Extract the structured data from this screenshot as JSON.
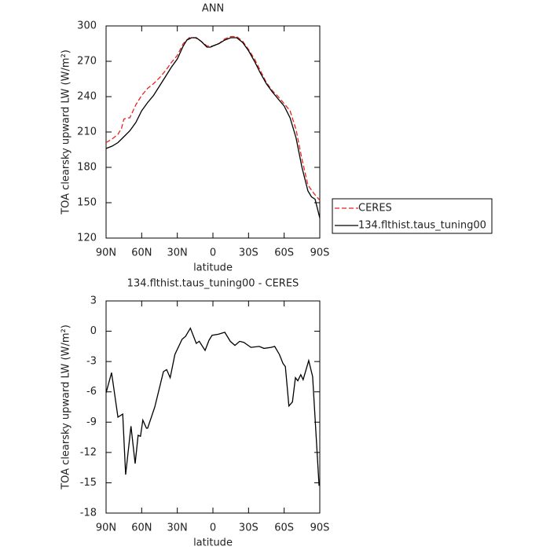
{
  "chart_data": [
    {
      "type": "line",
      "title": "ANN",
      "xlabel": "latitude",
      "ylabel": "TOA clearsky upward LW (W/m²)",
      "xlim": [
        90,
        -90
      ],
      "xticks": [
        {
          "value": 90,
          "label": "90N"
        },
        {
          "value": 60,
          "label": "60N"
        },
        {
          "value": 30,
          "label": "30N"
        },
        0,
        {
          "value": -30,
          "label": "30S"
        },
        {
          "value": -60,
          "label": "60S"
        },
        {
          "value": -90,
          "label": "90S"
        }
      ],
      "ylim": [
        120,
        300
      ],
      "yticks": [
        120,
        150,
        180,
        210,
        240,
        270,
        300
      ],
      "legend": "right",
      "series": [
        {
          "name": "CERES",
          "color": "#e8231e",
          "dashed": true,
          "x": [
            90,
            85,
            80,
            77,
            75,
            72,
            70,
            65,
            60,
            55,
            50,
            45,
            40,
            35,
            30,
            25,
            20,
            15,
            10,
            5,
            0,
            -5,
            -10,
            -15,
            -20,
            -25,
            -30,
            -35,
            -40,
            -45,
            -50,
            -55,
            -60,
            -65,
            -70,
            -75,
            -80,
            -85,
            -90
          ],
          "values": [
            201,
            204,
            208,
            213,
            221,
            222,
            222,
            233,
            241,
            247,
            251,
            256,
            262,
            269,
            275,
            285,
            290,
            290,
            287,
            283,
            283,
            285,
            289,
            291,
            291,
            287,
            280,
            272,
            262,
            252,
            245,
            240,
            234,
            228,
            212,
            187,
            165,
            158,
            152
          ]
        },
        {
          "name": "134.flthist.taus_tuning00",
          "color": "#000000",
          "dashed": false,
          "x": [
            90,
            85,
            80,
            75,
            70,
            65,
            60,
            55,
            50,
            45,
            40,
            35,
            30,
            25,
            22,
            18,
            14,
            10,
            5,
            2,
            0,
            -5,
            -10,
            -15,
            -20,
            -25,
            -30,
            -35,
            -40,
            -45,
            -50,
            -55,
            -60,
            -65,
            -70,
            -75,
            -80,
            -83,
            -86,
            -90
          ],
          "values": [
            196,
            198,
            201,
            206,
            211,
            218,
            228,
            235,
            241,
            249,
            257,
            265,
            272,
            283,
            288,
            290,
            290,
            287,
            282,
            282,
            283,
            285,
            288,
            290,
            290,
            286,
            279,
            270,
            260,
            251,
            244,
            238,
            232,
            222,
            205,
            180,
            160,
            155,
            153,
            137
          ]
        }
      ]
    },
    {
      "type": "line",
      "title": "134.flthist.taus_tuning00 - CERES",
      "xlabel": "latitude",
      "ylabel": "TOA clearsky upward LW (W/m²)",
      "xlim": [
        90,
        -90
      ],
      "xticks": [
        {
          "value": 90,
          "label": "90N"
        },
        {
          "value": 60,
          "label": "60N"
        },
        {
          "value": 30,
          "label": "30N"
        },
        0,
        {
          "value": -30,
          "label": "30S"
        },
        {
          "value": -60,
          "label": "60S"
        },
        {
          "value": -90,
          "label": "90S"
        }
      ],
      "ylim": [
        -18,
        3
      ],
      "yticks": [
        -18,
        -15,
        -12,
        -9,
        -6,
        -3,
        0,
        3
      ],
      "color": "#000000",
      "x": [
        90,
        85.4,
        80,
        76,
        73.5,
        69,
        65.5,
        63,
        61,
        59,
        56,
        55,
        49,
        41.7,
        39,
        36,
        32,
        26,
        23,
        19,
        14,
        11.5,
        6.6,
        3.3,
        0.7,
        -4.6,
        -10,
        -14.6,
        -18.5,
        -22.5,
        -26,
        -32,
        -39,
        -43,
        -49,
        -52,
        -56,
        -59,
        -61,
        -64,
        -67,
        -69.5,
        -71.5,
        -74,
        -76,
        -80.7,
        -84,
        -89.4
      ],
      "values": [
        -6.1,
        -4.1,
        -8.5,
        -8.2,
        -14.2,
        -9.4,
        -13.1,
        -10.3,
        -10.4,
        -8.8,
        -9.6,
        -9.6,
        -7.5,
        -4.0,
        -3.8,
        -4.6,
        -2.3,
        -0.8,
        -0.5,
        0.3,
        -1.2,
        -1.0,
        -1.9,
        -0.9,
        -0.4,
        -0.3,
        -0.1,
        -1.0,
        -1.4,
        -1.0,
        -1.1,
        -1.6,
        -1.5,
        -1.7,
        -1.6,
        -1.5,
        -2.3,
        -3.2,
        -3.5,
        -7.4,
        -7.0,
        -4.6,
        -4.9,
        -4.3,
        -4.8,
        -2.9,
        -4.5,
        -15.3
      ]
    }
  ]
}
